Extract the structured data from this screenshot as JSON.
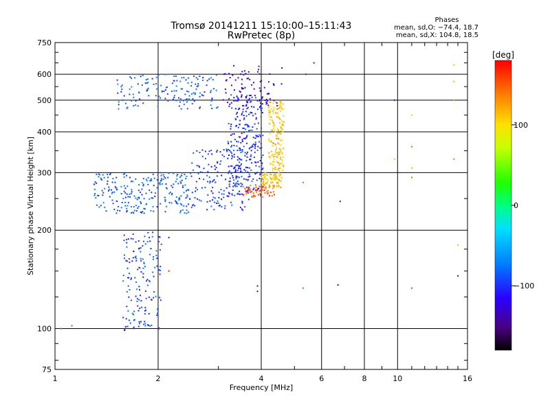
{
  "chart_data": {
    "type": "scatter",
    "title": "Tromsø 20141211 15:10:00–15:11:43",
    "subtitle": "RwPretec (8p)",
    "xlabel": "Frequency [MHz]",
    "ylabel": "Stationary phase Virtual Height [km]",
    "x_scale": "log",
    "y_scale": "log",
    "xlim": [
      1,
      16
    ],
    "ylim": [
      75,
      750
    ],
    "x_ticks": [
      1,
      2,
      4,
      6,
      8,
      10,
      16
    ],
    "x_tick_labels": [
      "1",
      "2",
      "4",
      "6",
      "8",
      "10",
      "16"
    ],
    "y_ticks": [
      75,
      100,
      200,
      300,
      400,
      500,
      600,
      750
    ],
    "y_tick_labels": [
      "75",
      "100",
      "200",
      "300",
      "400",
      "500",
      "600",
      "750"
    ],
    "grid": true,
    "legend": {
      "title": "Phases",
      "lines": [
        "mean, sd,O: −74.4, 18.7",
        "mean, sd,X: 104.8, 18.5"
      ],
      "placement": "top-right"
    },
    "colorbar": {
      "label": "[deg]",
      "range": [
        -180,
        180
      ],
      "ticks": [
        100,
        0,
        -100
      ],
      "tick_labels": [
        "100",
        "0",
        "−100"
      ],
      "colormap": "rainbow"
    },
    "traces": [
      {
        "x": [
          1.58,
          2.05
        ],
        "y": [
          98,
          200
        ],
        "phase": -90,
        "count": 160
      },
      {
        "x": [
          1.3,
          2.5
        ],
        "y": [
          225,
          300
        ],
        "phase": -85,
        "count": 240
      },
      {
        "x": [
          2.5,
          3.7
        ],
        "y": [
          230,
          360
        ],
        "phase": -95,
        "count": 160
      },
      {
        "x": [
          3.2,
          4.05
        ],
        "y": [
          255,
          520
        ],
        "phase": -100,
        "count": 260
      },
      {
        "x": [
          3.5,
          4.4
        ],
        "y": [
          252,
          275
        ],
        "phase": 150,
        "count": 60
      },
      {
        "x": [
          4.0,
          4.6
        ],
        "y": [
          270,
          300
        ],
        "phase": 110,
        "count": 80
      },
      {
        "x": [
          4.2,
          4.65
        ],
        "y": [
          300,
          500
        ],
        "phase": 110,
        "count": 160
      },
      {
        "x": [
          1.5,
          3.0
        ],
        "y": [
          470,
          600
        ],
        "phase": -85,
        "count": 150
      },
      {
        "x": [
          3.0,
          4.6
        ],
        "y": [
          480,
          640
        ],
        "phase": -130,
        "count": 90
      }
    ],
    "isolated_points": [
      {
        "x": 1.04,
        "y": 100,
        "phase": -60
      },
      {
        "x": 1.12,
        "y": 102,
        "phase": -70
      },
      {
        "x": 1.8,
        "y": 228,
        "phase": -90
      },
      {
        "x": 2.15,
        "y": 190,
        "phase": -130
      },
      {
        "x": 2.15,
        "y": 150,
        "phase": 170
      },
      {
        "x": 3.9,
        "y": 135,
        "phase": -120
      },
      {
        "x": 3.9,
        "y": 130,
        "phase": -140
      },
      {
        "x": 5.3,
        "y": 133,
        "phase": -60
      },
      {
        "x": 5.4,
        "y": 600,
        "phase": -100
      },
      {
        "x": 5.7,
        "y": 650,
        "phase": -110
      },
      {
        "x": 5.3,
        "y": 280,
        "phase": 150
      },
      {
        "x": 6.8,
        "y": 245,
        "phase": -110
      },
      {
        "x": 6.7,
        "y": 136,
        "phase": -130
      },
      {
        "x": 9.8,
        "y": 500,
        "phase": -110
      },
      {
        "x": 9.8,
        "y": 330,
        "phase": 110
      },
      {
        "x": 11.0,
        "y": 450,
        "phase": 110
      },
      {
        "x": 11.0,
        "y": 360,
        "phase": 150
      },
      {
        "x": 11.0,
        "y": 290,
        "phase": 150
      },
      {
        "x": 11.0,
        "y": 310,
        "phase": 120
      },
      {
        "x": 11.0,
        "y": 133,
        "phase": -70
      },
      {
        "x": 14.6,
        "y": 640,
        "phase": 110
      },
      {
        "x": 14.6,
        "y": 570,
        "phase": 120
      },
      {
        "x": 14.6,
        "y": 500,
        "phase": 130
      },
      {
        "x": 14.6,
        "y": 330,
        "phase": 140
      },
      {
        "x": 15.0,
        "y": 180,
        "phase": 110
      },
      {
        "x": 15.0,
        "y": 145,
        "phase": -110
      }
    ]
  }
}
